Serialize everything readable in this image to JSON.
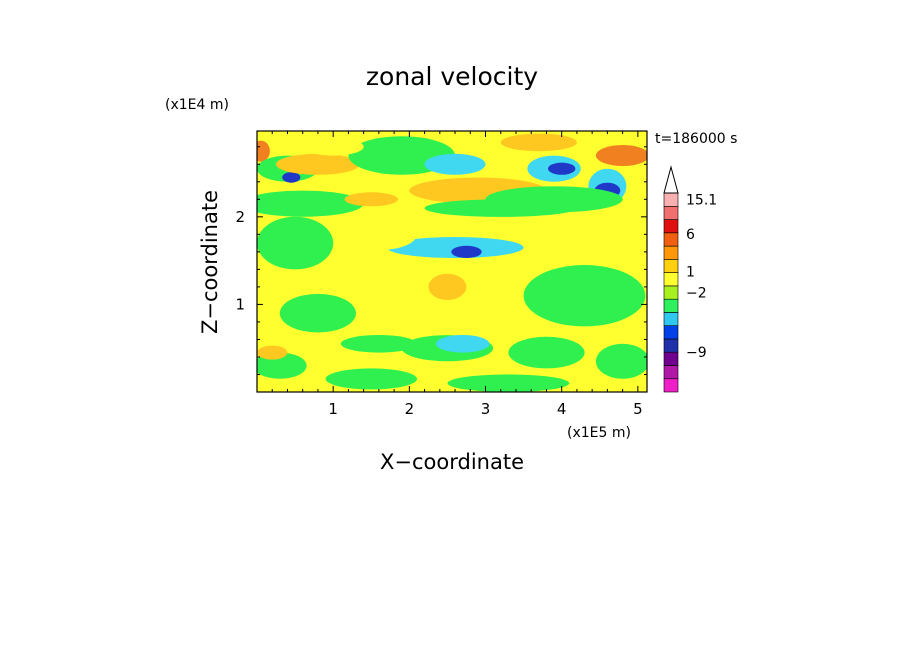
{
  "chart_data": {
    "type": "heatmap",
    "title": "zonal velocity",
    "xlabel": "X−coordinate",
    "ylabel": "Z−coordinate",
    "x_scale_label": "(x1E5 m)",
    "y_scale_label": "(x1E4 m)",
    "time_label": "t=186000 s",
    "xlim": [
      0,
      5.12
    ],
    "ylim": [
      0,
      2.98
    ],
    "x_ticks": [
      {
        "value": 1,
        "label": "1"
      },
      {
        "value": 2,
        "label": "2"
      },
      {
        "value": 3,
        "label": "3"
      },
      {
        "value": 4,
        "label": "4"
      },
      {
        "value": 5,
        "label": "5"
      }
    ],
    "y_ticks": [
      {
        "value": 1,
        "label": "1"
      },
      {
        "value": 2,
        "label": "2"
      }
    ],
    "colorbar": {
      "levels": [
        {
          "color": "#f020c8"
        },
        {
          "color": "#b018a8"
        },
        {
          "color": "#700090"
        },
        {
          "color": "#2030a8"
        },
        {
          "color": "#0040e8"
        },
        {
          "color": "#30c8f0"
        },
        {
          "color": "#30f060"
        },
        {
          "color": "#a8f020"
        },
        {
          "color": "#ffff30"
        },
        {
          "color": "#ffd010"
        },
        {
          "color": "#ff9808"
        },
        {
          "color": "#f06010"
        },
        {
          "color": "#e01010"
        },
        {
          "color": "#f07070"
        },
        {
          "color": "#f8b0b0"
        }
      ],
      "labels": [
        {
          "text": "15.1",
          "level_index": 14
        },
        {
          "text": "6",
          "level_index": 11.4
        },
        {
          "text": "1",
          "level_index": 8.6
        },
        {
          "text": "−2",
          "level_index": 7
        },
        {
          "text": "−9",
          "level_index": 2.5
        }
      ]
    },
    "field": {
      "background_value": 0,
      "contour_fill": {
        "strong_positive": "#f08020",
        "positive": "#ffc820",
        "weak_positive": "#ffff30",
        "neutral": "#30f050",
        "negative": "#40d8f0",
        "strong_negative": "#2038c8"
      },
      "features": [
        {
          "x": 0.05,
          "y": 2.75,
          "rx": 0.12,
          "ry": 0.12,
          "level": "strong_positive"
        },
        {
          "x": 0.4,
          "y": 2.55,
          "rx": 0.4,
          "ry": 0.15,
          "level": "neutral"
        },
        {
          "x": 0.45,
          "y": 2.45,
          "rx": 0.12,
          "ry": 0.06,
          "level": "strong_negative"
        },
        {
          "x": 0.8,
          "y": 2.6,
          "rx": 0.55,
          "ry": 0.12,
          "level": "positive"
        },
        {
          "x": 0.6,
          "y": 2.15,
          "rx": 0.8,
          "ry": 0.15,
          "level": "neutral"
        },
        {
          "x": 0.5,
          "y": 1.7,
          "rx": 0.5,
          "ry": 0.3,
          "level": "neutral"
        },
        {
          "x": 1.9,
          "y": 2.7,
          "rx": 0.7,
          "ry": 0.22,
          "level": "neutral"
        },
        {
          "x": 2.6,
          "y": 2.6,
          "rx": 0.4,
          "ry": 0.12,
          "level": "negative"
        },
        {
          "x": 2.9,
          "y": 2.3,
          "rx": 0.9,
          "ry": 0.15,
          "level": "positive"
        },
        {
          "x": 3.2,
          "y": 2.1,
          "rx": 1.0,
          "ry": 0.1,
          "level": "neutral"
        },
        {
          "x": 2.6,
          "y": 1.65,
          "rx": 0.9,
          "ry": 0.12,
          "level": "negative"
        },
        {
          "x": 2.75,
          "y": 1.6,
          "rx": 0.2,
          "ry": 0.07,
          "level": "strong_negative"
        },
        {
          "x": 3.9,
          "y": 2.55,
          "rx": 0.35,
          "ry": 0.15,
          "level": "negative"
        },
        {
          "x": 4.0,
          "y": 2.55,
          "rx": 0.18,
          "ry": 0.07,
          "level": "strong_negative"
        },
        {
          "x": 4.6,
          "y": 2.35,
          "rx": 0.25,
          "ry": 0.2,
          "level": "negative"
        },
        {
          "x": 4.6,
          "y": 2.3,
          "rx": 0.17,
          "ry": 0.09,
          "level": "strong_negative"
        },
        {
          "x": 4.8,
          "y": 2.7,
          "rx": 0.35,
          "ry": 0.12,
          "level": "strong_positive"
        },
        {
          "x": 3.9,
          "y": 2.2,
          "rx": 0.9,
          "ry": 0.15,
          "level": "neutral"
        },
        {
          "x": 3.0,
          "y": 1.2,
          "rx": 0.8,
          "ry": 0.25,
          "level": "weak_positive"
        },
        {
          "x": 2.5,
          "y": 1.2,
          "rx": 0.25,
          "ry": 0.15,
          "level": "positive"
        },
        {
          "x": 4.3,
          "y": 1.1,
          "rx": 0.8,
          "ry": 0.35,
          "level": "neutral"
        },
        {
          "x": 0.8,
          "y": 0.9,
          "rx": 0.5,
          "ry": 0.22,
          "level": "neutral"
        },
        {
          "x": 1.6,
          "y": 0.55,
          "rx": 0.5,
          "ry": 0.1,
          "level": "neutral"
        },
        {
          "x": 2.5,
          "y": 0.5,
          "rx": 0.6,
          "ry": 0.15,
          "level": "neutral"
        },
        {
          "x": 2.7,
          "y": 0.55,
          "rx": 0.35,
          "ry": 0.1,
          "level": "negative"
        },
        {
          "x": 3.8,
          "y": 0.45,
          "rx": 0.5,
          "ry": 0.18,
          "level": "neutral"
        },
        {
          "x": 4.8,
          "y": 0.35,
          "rx": 0.35,
          "ry": 0.2,
          "level": "neutral"
        },
        {
          "x": 0.3,
          "y": 0.3,
          "rx": 0.35,
          "ry": 0.15,
          "level": "neutral"
        },
        {
          "x": 0.2,
          "y": 0.45,
          "rx": 0.2,
          "ry": 0.08,
          "level": "positive"
        },
        {
          "x": 1.5,
          "y": 0.15,
          "rx": 0.6,
          "ry": 0.12,
          "level": "neutral"
        },
        {
          "x": 3.3,
          "y": 0.1,
          "rx": 0.8,
          "ry": 0.1,
          "level": "neutral"
        },
        {
          "x": 1.0,
          "y": 2.8,
          "rx": 0.4,
          "ry": 0.1,
          "level": "weak_positive"
        },
        {
          "x": 1.6,
          "y": 1.8,
          "rx": 0.5,
          "ry": 0.18,
          "level": "weak_positive"
        },
        {
          "x": 4.7,
          "y": 1.6,
          "rx": 0.35,
          "ry": 0.18,
          "level": "weak_positive"
        },
        {
          "x": 3.7,
          "y": 2.85,
          "rx": 0.5,
          "ry": 0.1,
          "level": "positive"
        },
        {
          "x": 1.5,
          "y": 2.2,
          "rx": 0.35,
          "ry": 0.08,
          "level": "positive"
        }
      ]
    }
  }
}
